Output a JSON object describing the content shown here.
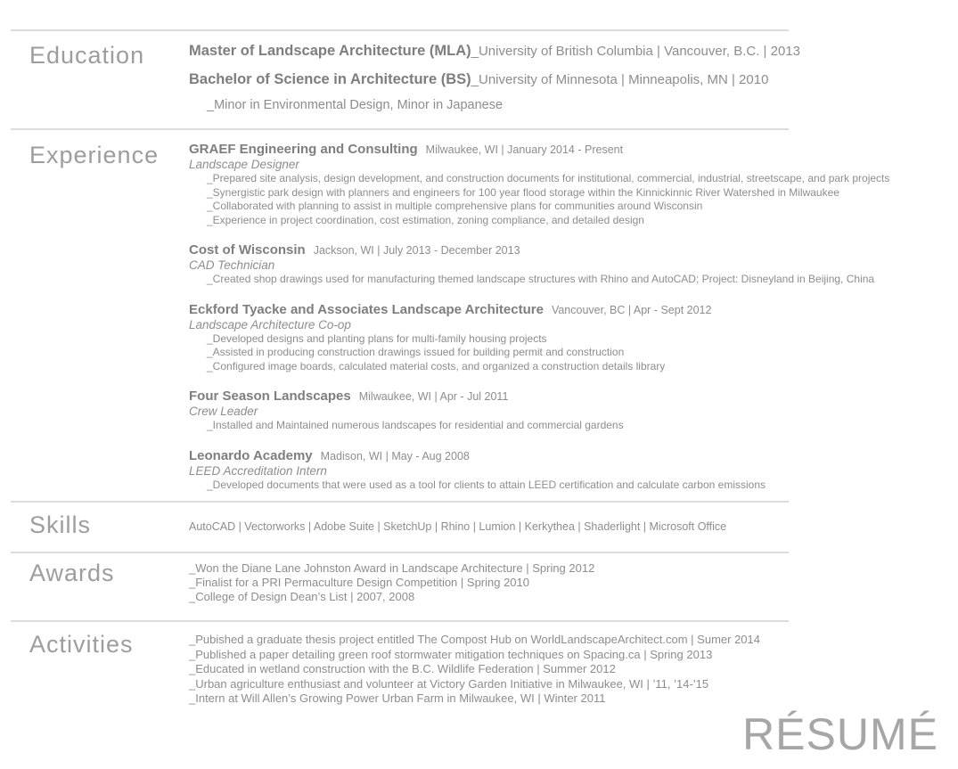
{
  "watermark": "RÉSUMÉ",
  "colors": {
    "heading": "#9d9d9d",
    "body_text": "#8d8d8d",
    "bold_text": "#7e7e7e",
    "divider": "#dcdcdc",
    "watermark": "#a6a6a6"
  },
  "education": {
    "heading": "Education",
    "degrees": [
      {
        "title": "Master of Landscape Architecture (MLA)",
        "details": "_University of British Columbia | Vancouver, B.C. | 2013"
      },
      {
        "title": "Bachelor of Science in Architecture (BS)",
        "details": "_University of Minnesota | Minneapolis, MN | 2010"
      }
    ],
    "note": "_Minor in Environmental Design, Minor in Japanese"
  },
  "experience": {
    "heading": "Experience",
    "jobs": [
      {
        "organization": "GRAEF Engineering and Consulting",
        "location_dates": "Milwaukee, WI | January 2014 - Present",
        "title": "Landscape Designer",
        "bullets": [
          "_Prepared site analysis, design development, and construction documents for institutional, commercial, industrial, streetscape, and park projects",
          "_Synergistic park design with planners and engineers for 100 year flood storage within the Kinnickinnic River Watershed in Milwaukee",
          "_Collaborated with planning to assist in multiple comprehensive plans for communities around Wisconsin",
          "_Experience in project coordination, cost estimation, zoning compliance, and detailed design"
        ]
      },
      {
        "organization": "Cost of Wisconsin",
        "location_dates": "Jackson, WI | July 2013 - December 2013",
        "title": "CAD Technician",
        "bullets": [
          "_Created shop drawings used for manufacturing themed landscape structures with Rhino and AutoCAD;  Project: Disneyland in Beijing, China"
        ]
      },
      {
        "organization": "Eckford Tyacke and Associates Landscape Architecture",
        "location_dates": "Vancouver, BC | Apr - Sept 2012",
        "title": "Landscape Architecture Co-op",
        "bullets": [
          "_Developed designs and planting plans for multi-family housing projects",
          "_Assisted in producing construction drawings issued for building permit and construction",
          "_Configured image boards, calculated material costs, and organized a construction details library"
        ]
      },
      {
        "organization": "Four Season Landscapes",
        "location_dates": "Milwaukee, WI | Apr - Jul 2011",
        "title": "Crew Leader",
        "bullets": [
          "_Installed and Maintained numerous landscapes for residential and commercial gardens"
        ]
      },
      {
        "organization": "Leonardo Academy",
        "location_dates": "Madison, WI | May - Aug 2008",
        "title": "LEED Accreditation Intern",
        "bullets": [
          "_Developed documents that were used as a tool for clients to attain LEED certification and calculate carbon emissions"
        ]
      }
    ]
  },
  "skills": {
    "heading": "Skills",
    "list": "AutoCAD | Vectorworks | Adobe Suite | SketchUp | Rhino | Lumion | Kerkythea | Shaderlight | Microsoft Office"
  },
  "awards": {
    "heading": "Awards",
    "items": [
      "_Won the Diane Lane Johnston Award in Landscape Architecture  |  Spring 2012",
      "_Finalist for a PRI Permaculture Design Competition  |  Spring 2010",
      "_College of Design Dean’s List  |  2007, 2008"
    ]
  },
  "activities": {
    "heading": "Activities",
    "items": [
      "_Pubished a graduate thesis project entitled The Compost Hub on WorldLandscapeArchitect.com | Sumer 2014",
      "_Published a paper detailing green roof stormwater mitigation techniques on Spacing.ca  |  Spring 2013",
      "_Educated in wetland construction with the B.C. Wildlife Federation  |  Summer 2012",
      "_Urban agriculture enthusiast and volunteer at Victory Garden Initiative in Milwaukee, WI | ’11, ’14-’15",
      "_Intern at Will Allen’s Growing Power Urban Farm in Milwaukee, WI | Winter 2011"
    ]
  }
}
